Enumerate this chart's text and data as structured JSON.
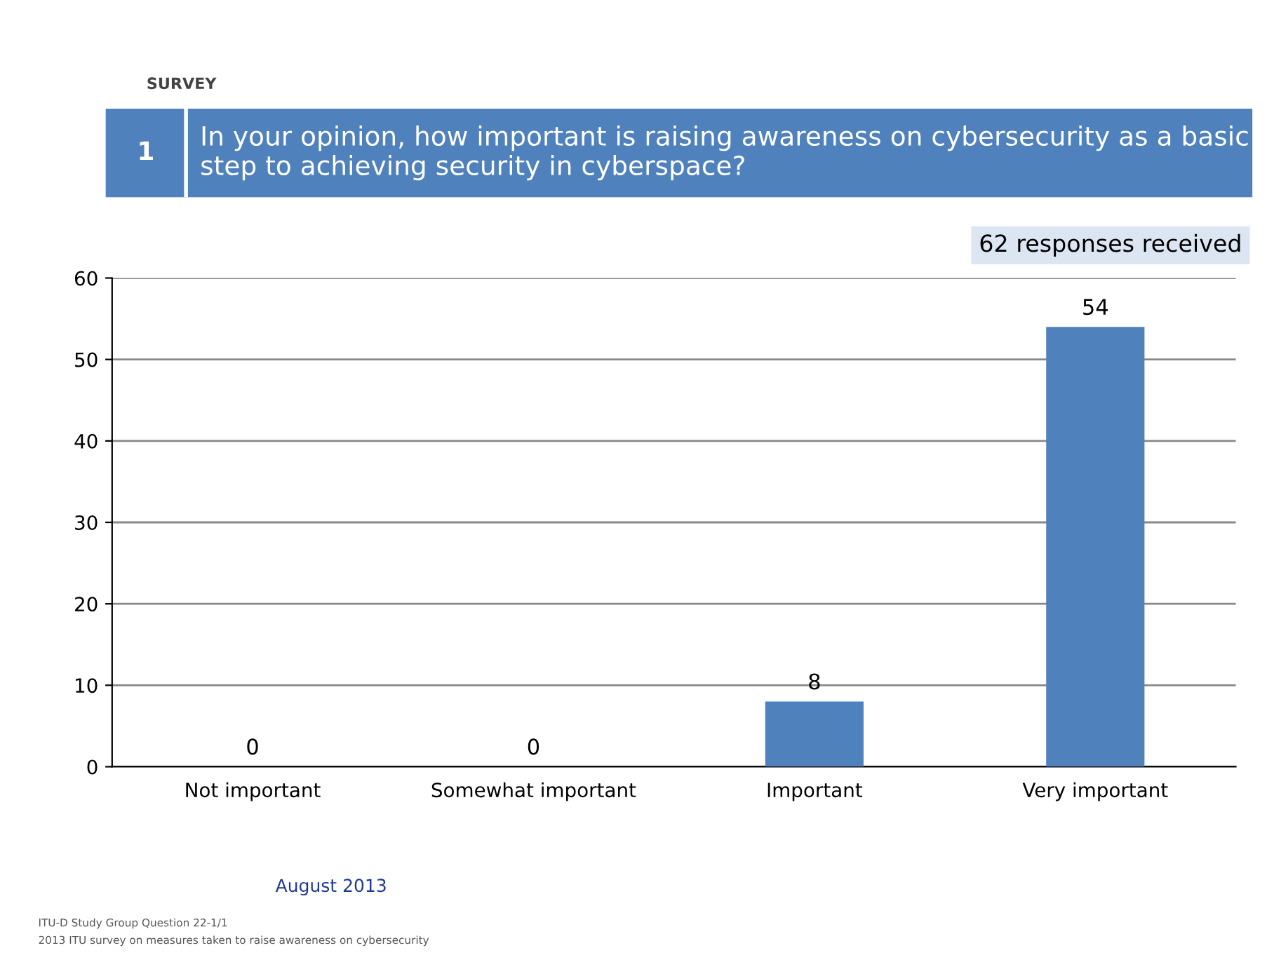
{
  "chart_data": {
    "type": "bar",
    "subtitle": "SURVEY",
    "title": "In your opinion, how important is raising awareness on cybersecurity as a basic step to achieving security in cyberspace?",
    "categories": [
      "Not important",
      "Somewhat important",
      "Important",
      "Very important"
    ],
    "values": [
      0,
      0,
      8,
      54
    ],
    "color": "#4f81bd",
    "ylim": [
      0,
      60
    ],
    "yticks": [
      0,
      10,
      20,
      30,
      40,
      50,
      60
    ],
    "grid": "y",
    "data_labels": true,
    "annotations": [
      "1",
      "62 responses received",
      "August 2013",
      "ITU-D Study Group Question 22-1/1",
      "2013 ITU survey on measures taken to raise awareness on cybersecurity"
    ]
  }
}
